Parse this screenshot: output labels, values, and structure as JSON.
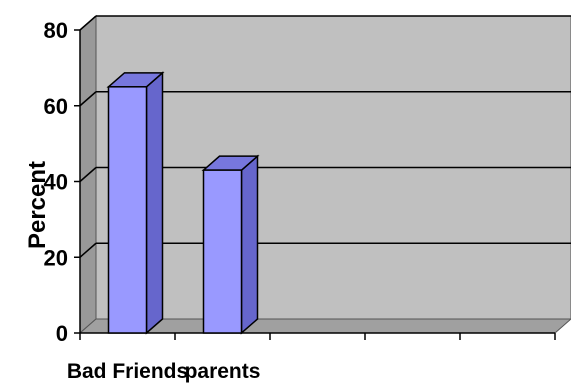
{
  "chart_data": {
    "type": "bar",
    "style": "3d-column",
    "categories": [
      "Bad Friends",
      "parents"
    ],
    "values": [
      65,
      43
    ],
    "ylabel": "Percent",
    "ylim": [
      0,
      80
    ],
    "yticks": [
      0,
      20,
      40,
      60,
      80
    ],
    "grid": true,
    "colors": {
      "bar_front": "#9999ff",
      "bar_side": "#6666cc",
      "bar_top": "#7777dd",
      "back_wall": "#c0c0c0",
      "side_wall": "#999999",
      "floor": "#a0a0a0",
      "gridline": "#000000"
    }
  }
}
